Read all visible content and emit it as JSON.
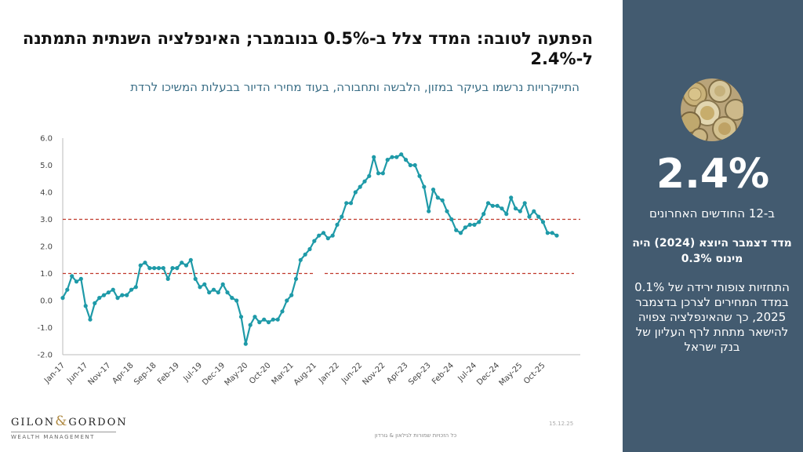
{
  "header": {
    "title": "הפתעה לטובה: המדד צלל ב-0.5% בנובמבר; האינפלציה השנתית התמתנה ל-2.4%",
    "subtitle": "התייקרויות נרשמו בעיקר במזון, הלבשה ותחבורה, בעוד מחירי הדיור בבעלות המשיכו לרדת"
  },
  "sidebar": {
    "big_value": "2.4%",
    "period_label": "ב-12 החודשים האחרונים",
    "december_note": "מדד דצמבר היוצא (2024) היה מינוס 0.3%",
    "forecast_text": "התחזיות צופות ירידה של 0.1% במדד המחירים לצרכן בדצמבר 2025, כך שהאינפלציה צפויה להישאר מתחת לרף העליון של בנק ישראל",
    "image_icon": "coins-image"
  },
  "footer": {
    "logo_name_left": "GILON",
    "logo_amp": "&",
    "logo_name_right": "GORDON",
    "logo_sub": "WEALTH MANAGEMENT",
    "date": "15.12.25",
    "rights": "כל הזכויות שמורות לגילאון & גורדון"
  },
  "colors": {
    "line": "#1e9aa8",
    "target_band": "#c0392b",
    "sidebar_bg": "#435b70"
  },
  "chart_data": {
    "type": "line",
    "title": "",
    "xlabel": "",
    "ylabel": "",
    "ylim": [
      -2.0,
      6.0
    ],
    "yticks": [
      6.0,
      5.0,
      4.0,
      3.0,
      2.0,
      1.0,
      0.0,
      -1.0,
      -2.0
    ],
    "ytick_labels": [
      "6.0",
      "5.0",
      "4.0",
      "3.0",
      "2.0",
      "1.0",
      "0.0",
      "-1.0",
      "-2.0"
    ],
    "x_tick_labels": [
      "Jan-17",
      "Jun-17",
      "Nov-17",
      "Apr-18",
      "Sep-18",
      "Feb-19",
      "Jul-19",
      "Dec-19",
      "May-20",
      "Oct-20",
      "Mar-21",
      "Aug-21",
      "Jan-22",
      "Jun-22",
      "Nov-22",
      "Apr-23",
      "Sep-23",
      "Feb-24",
      "Jul-24",
      "Dec-24",
      "May-25",
      "Oct-25"
    ],
    "start_month": "Jan-17",
    "reference_lines": [
      {
        "name": "target-upper",
        "value": 3.0
      },
      {
        "name": "target-lower",
        "value": 1.0
      }
    ],
    "series": [
      {
        "name": "annual-inflation",
        "values": [
          0.1,
          0.4,
          0.9,
          0.7,
          0.8,
          -0.2,
          -0.7,
          -0.1,
          0.1,
          0.2,
          0.3,
          0.4,
          0.1,
          0.2,
          0.2,
          0.4,
          0.5,
          1.3,
          1.4,
          1.2,
          1.2,
          1.2,
          1.2,
          0.8,
          1.2,
          1.2,
          1.4,
          1.3,
          1.5,
          0.8,
          0.5,
          0.6,
          0.3,
          0.4,
          0.3,
          0.6,
          0.3,
          0.1,
          0.0,
          -0.6,
          -1.6,
          -0.9,
          -0.6,
          -0.8,
          -0.7,
          -0.8,
          -0.7,
          -0.7,
          -0.4,
          0.0,
          0.2,
          0.8,
          1.5,
          1.7,
          1.9,
          2.2,
          2.4,
          2.5,
          2.3,
          2.4,
          2.8,
          3.1,
          3.6,
          3.6,
          4.0,
          4.2,
          4.4,
          4.6,
          5.3,
          4.7,
          4.7,
          5.2,
          5.3,
          5.3,
          5.4,
          5.2,
          5.0,
          5.0,
          4.6,
          4.2,
          3.3,
          4.1,
          3.8,
          3.7,
          3.3,
          3.0,
          2.6,
          2.5,
          2.7,
          2.8,
          2.8,
          2.9,
          3.2,
          3.6,
          3.5,
          3.5,
          3.4,
          3.2,
          3.8,
          3.4,
          3.3,
          3.6,
          3.1,
          3.3,
          3.1,
          2.9,
          2.5,
          2.5,
          2.4
        ]
      }
    ]
  }
}
